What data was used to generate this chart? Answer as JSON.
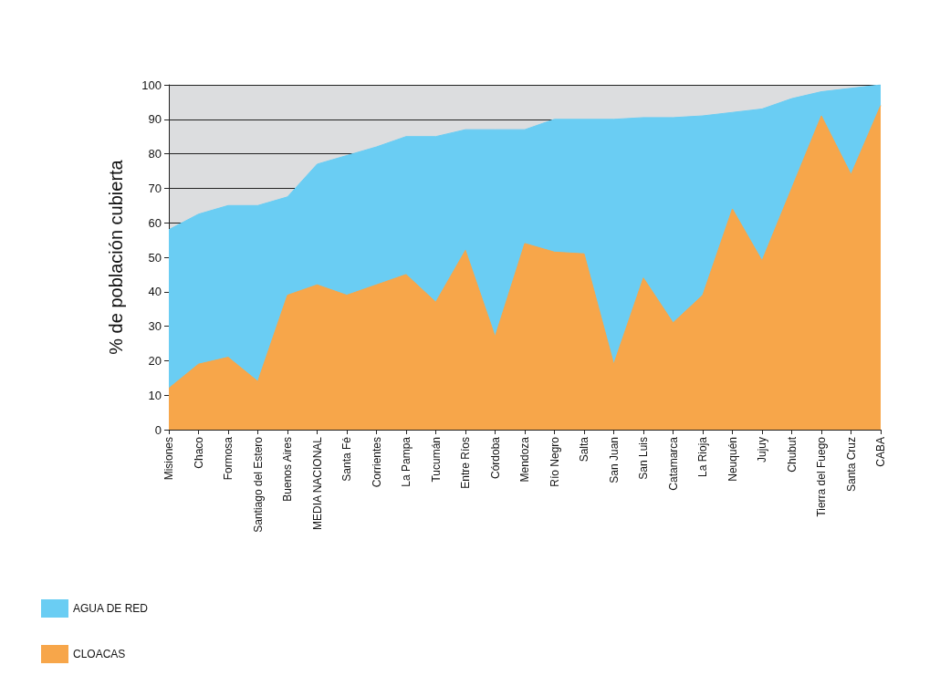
{
  "chart_data": {
    "type": "area",
    "ylabel": "% de población cubierta",
    "categories": [
      "Misiones",
      "Chaco",
      "Formosa",
      "Santiago del Estero",
      "Buenos Aires",
      "MEDIA NACIONAL",
      "Santa Fé",
      "Corrientes",
      "La Pampa",
      "Tucumán",
      "Entre Ríos",
      "Córdoba",
      "Mendoza",
      "Río Negro",
      "Salta",
      "San Juan",
      "San Luis",
      "Catamarca",
      "La Rioja",
      "Neuquén",
      "Jujuy",
      "Chubut",
      "Tierra del Fuego",
      "Santa Cruz",
      "CABA"
    ],
    "series": [
      {
        "name": "AGUA DE RED",
        "color": "#6acdf3",
        "values": [
          58,
          62.5,
          65,
          65,
          67.5,
          77,
          79.5,
          82,
          85,
          85,
          87,
          87,
          87,
          90,
          90,
          90,
          90.5,
          90.5,
          91,
          92,
          93,
          96,
          98,
          99,
          100
        ]
      },
      {
        "name": "CLOACAS",
        "color": "#f7a64a",
        "values": [
          12,
          19,
          21,
          14,
          39,
          42,
          39,
          42,
          45,
          37,
          52,
          27,
          54,
          51.5,
          51,
          19,
          44,
          31,
          39,
          64,
          49,
          70,
          91,
          74,
          94
        ]
      }
    ],
    "ylim": [
      0,
      100
    ],
    "yticks": [
      0,
      10,
      20,
      30,
      40,
      50,
      60,
      70,
      80,
      90,
      100
    ],
    "grid": "y",
    "legend": "bottom left"
  }
}
